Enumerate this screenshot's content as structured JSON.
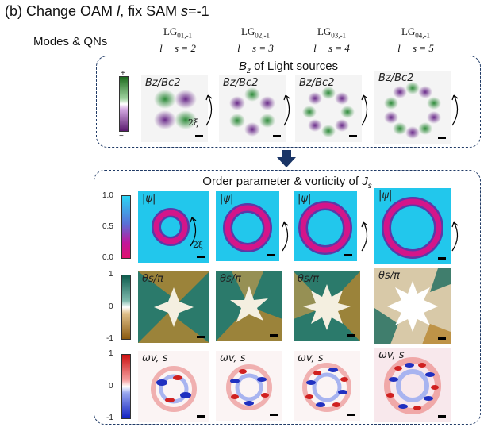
{
  "figure": {
    "title_prefix": "(b) Change OAM ",
    "title_l": "l",
    "title_mid": ", fix SAM ",
    "title_s": "s",
    "title_suffix": "=-1",
    "modes_label": "Modes & QNs"
  },
  "columns": [
    {
      "mode": "LG",
      "sub": "01,-1",
      "qn_eq": "l − s = 2"
    },
    {
      "mode": "LG",
      "sub": "02,-1",
      "qn_eq": "l − s = 3"
    },
    {
      "mode": "LG",
      "sub": "03,-1",
      "qn_eq": "l − s = 4"
    },
    {
      "mode": "LG",
      "sub": "04,-1",
      "qn_eq": "l − s = 5"
    }
  ],
  "panel_top": {
    "title_B": "B",
    "title_sub": "z",
    "title_rest": " of Light sources",
    "tile_label": "Bz/Bc2",
    "colorbar_plus": "+",
    "colorbar_minus": "−",
    "xi_label": "2ξ"
  },
  "panel_bottom": {
    "title": "Order parameter & vorticity of ",
    "title_J": "J",
    "title_Jsub": "s",
    "row_psi_label": "|ψ|",
    "row_theta_label": "θs/π",
    "row_omega_label": "ωv, s",
    "psi_ticks": [
      "1.0",
      "0.5",
      "0.0"
    ],
    "theta_ticks": [
      "1",
      "0",
      "-1"
    ],
    "omega_ticks": [
      "1",
      "0",
      "-1"
    ],
    "xi_label": "2ξ"
  },
  "colors": {
    "border": "#1f3a66",
    "arrow": "#1a3566",
    "green": "#2e8b3a",
    "purple": "#6a2b8a",
    "cyan": "#22c7ec",
    "magenta": "#d4158a",
    "teal": "#1a6b5e",
    "tan": "#b8862e"
  }
}
